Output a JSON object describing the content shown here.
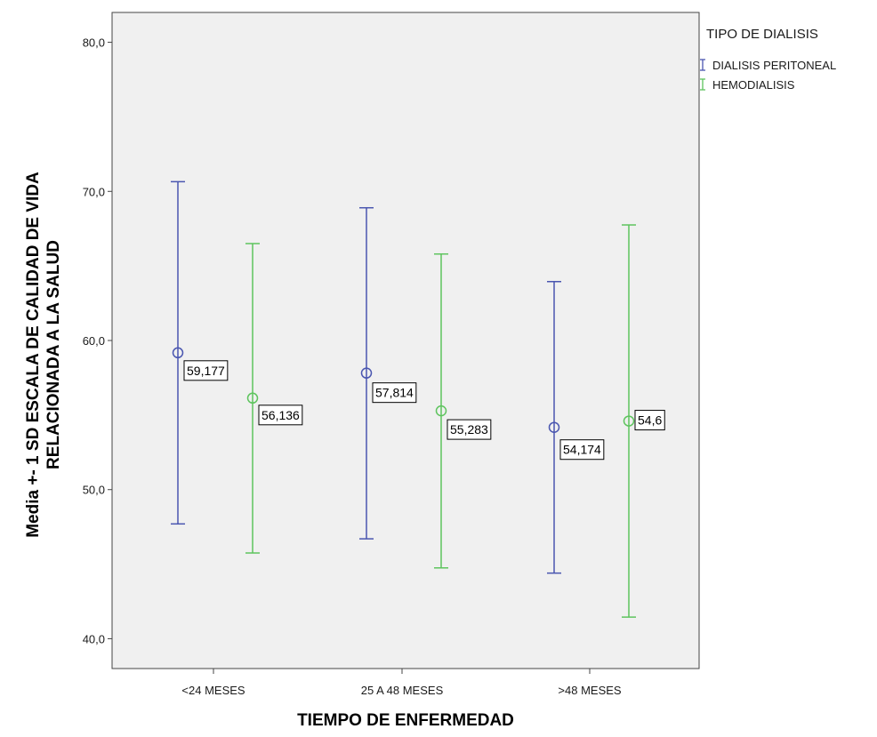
{
  "chart_data": {
    "type": "errorbar",
    "ylabel_lines": [
      "Media +- 1 SD ESCALA DE CALIDAD DE VIDA",
      "RELACIONADA A LA SALUD"
    ],
    "xlabel": "TIEMPO DE ENFERMEDAD",
    "ylim": [
      38.0,
      82.0
    ],
    "yticks": [
      40,
      50,
      60,
      70,
      80
    ],
    "ytick_labels": [
      "40,0",
      "50,0",
      "60,0",
      "70,0",
      "80,0"
    ],
    "categories": [
      "<24 MESES",
      "25 A 48 MESES",
      ">48 MESES"
    ],
    "legend": {
      "title": "TIPO DE DIALISIS",
      "placement": "top-right outside"
    },
    "grid": false,
    "series": [
      {
        "name": "DIALISIS PERITONEAL",
        "color": "#4a56b0",
        "mean": [
          59.177,
          57.814,
          54.174
        ],
        "lower": [
          47.7,
          46.7,
          44.4
        ],
        "upper": [
          70.65,
          68.9,
          63.95
        ],
        "mean_labels": [
          "59,177",
          "57,814",
          "54,174"
        ]
      },
      {
        "name": "HEMODIALISIS",
        "color": "#5ec45e",
        "mean": [
          56.136,
          55.283,
          54.6
        ],
        "lower": [
          45.75,
          44.75,
          41.45
        ],
        "upper": [
          66.5,
          65.8,
          67.75
        ],
        "mean_labels": [
          "56,136",
          "55,283",
          "54,6"
        ]
      }
    ]
  }
}
